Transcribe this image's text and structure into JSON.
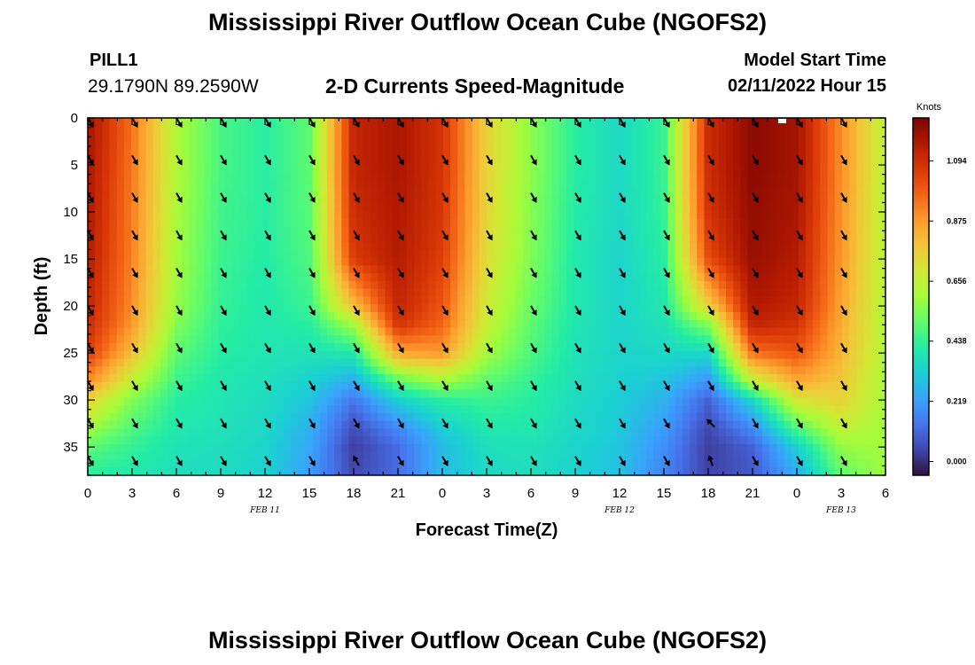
{
  "header": {
    "title": "Mississippi River Outflow Ocean Cube (NGOFS2)",
    "station_name": "PILL1",
    "station_coords": "29.1790N  89.2590W",
    "subtitle": "2-D Currents Speed-Magnitude",
    "model_start_label": "Model Start Time",
    "model_start_value": "02/11/2022 Hour 15"
  },
  "footer": {
    "title": "Mississippi River Outflow Ocean Cube (NGOFS2)"
  },
  "chart_data": {
    "type": "heatmap",
    "xlabel": "Forecast Time(Z)",
    "ylabel": "Depth (ft)",
    "x_tick_labels": [
      "0",
      "3",
      "6",
      "9",
      "12",
      "15",
      "18",
      "21",
      "0",
      "3",
      "6",
      "9",
      "12",
      "15",
      "18",
      "21",
      "0",
      "3",
      "6"
    ],
    "x_tick_hours": [
      0,
      3,
      6,
      9,
      12,
      15,
      18,
      21,
      24,
      27,
      30,
      33,
      36,
      39,
      42,
      45,
      48,
      51,
      54
    ],
    "x_range_hours": [
      0,
      54
    ],
    "date_labels": [
      {
        "hour": 12,
        "label": "FEB 11"
      },
      {
        "hour": 36,
        "label": "FEB 12"
      },
      {
        "hour": 51,
        "label": "FEB 13"
      }
    ],
    "y_tick_labels": [
      "0",
      "5",
      "10",
      "15",
      "20",
      "25",
      "30",
      "35"
    ],
    "y_tick_values": [
      0,
      5,
      10,
      15,
      20,
      25,
      30,
      35
    ],
    "y_range_ft": [
      0,
      38
    ],
    "y_inverted": true,
    "colorbar": {
      "unit": "Knots",
      "range": [
        -0.05,
        1.25
      ],
      "tick_labels": [
        "0.000",
        "0.219",
        "0.438",
        "0.656",
        "0.875",
        "1.094"
      ],
      "tick_values": [
        0.0,
        0.219,
        0.438,
        0.656,
        0.875,
        1.094
      ],
      "colormap": [
        "#30123b",
        "#4145ab",
        "#4675ed",
        "#39a2fc",
        "#1bcfd4",
        "#24eca6",
        "#61fc6c",
        "#a4fc3b",
        "#d1e834",
        "#f3c63a",
        "#fe9b2d",
        "#f36315",
        "#d93806",
        "#b11901",
        "#7a0402"
      ]
    },
    "speed_knots_by_hour": [
      {
        "hour": 0,
        "depth_ft": [
          0,
          5,
          10,
          15,
          20,
          22,
          25,
          28,
          30,
          33,
          35,
          38
        ],
        "speed": [
          1.18,
          1.17,
          1.16,
          1.15,
          1.12,
          1.1,
          1.05,
          0.9,
          0.75,
          0.6,
          0.5,
          0.42
        ]
      },
      {
        "hour": 3,
        "depth_ft": [
          0,
          5,
          10,
          15,
          20,
          22,
          25,
          28,
          30,
          33,
          35,
          38
        ],
        "speed": [
          0.95,
          0.94,
          0.93,
          0.92,
          0.9,
          0.88,
          0.8,
          0.66,
          0.55,
          0.48,
          0.44,
          0.4
        ]
      },
      {
        "hour": 6,
        "depth_ft": [
          0,
          5,
          10,
          15,
          20,
          22,
          25,
          28,
          30,
          33,
          35,
          38
        ],
        "speed": [
          0.62,
          0.62,
          0.61,
          0.6,
          0.58,
          0.55,
          0.5,
          0.45,
          0.42,
          0.4,
          0.38,
          0.37
        ]
      },
      {
        "hour": 9,
        "depth_ft": [
          0,
          5,
          10,
          15,
          20,
          22,
          25,
          28,
          30,
          33,
          35,
          38
        ],
        "speed": [
          0.47,
          0.47,
          0.46,
          0.45,
          0.44,
          0.43,
          0.42,
          0.4,
          0.39,
          0.38,
          0.37,
          0.36
        ]
      },
      {
        "hour": 12,
        "depth_ft": [
          0,
          5,
          10,
          15,
          20,
          22,
          25,
          28,
          30,
          33,
          35,
          38
        ],
        "speed": [
          0.42,
          0.42,
          0.42,
          0.41,
          0.4,
          0.4,
          0.39,
          0.37,
          0.36,
          0.35,
          0.34,
          0.33
        ]
      },
      {
        "hour": 15,
        "depth_ft": [
          0,
          5,
          10,
          15,
          20,
          22,
          25,
          28,
          30,
          33,
          35,
          38
        ],
        "speed": [
          0.5,
          0.5,
          0.49,
          0.48,
          0.45,
          0.42,
          0.38,
          0.33,
          0.3,
          0.26,
          0.24,
          0.22
        ]
      },
      {
        "hour": 18,
        "depth_ft": [
          0,
          5,
          10,
          15,
          20,
          22,
          25,
          28,
          30,
          33,
          35,
          38
        ],
        "speed": [
          1.12,
          1.12,
          1.1,
          1.06,
          0.8,
          0.6,
          0.4,
          0.25,
          0.14,
          0.06,
          0.03,
          0.05
        ]
      },
      {
        "hour": 21,
        "depth_ft": [
          0,
          5,
          10,
          15,
          20,
          22,
          25,
          28,
          30,
          33,
          35,
          38
        ],
        "speed": [
          1.17,
          1.17,
          1.16,
          1.15,
          1.12,
          1.08,
          0.85,
          0.5,
          0.33,
          0.18,
          0.12,
          0.12
        ]
      },
      {
        "hour": 24,
        "depth_ft": [
          0,
          5,
          10,
          15,
          20,
          22,
          25,
          28,
          30,
          33,
          35,
          38
        ],
        "speed": [
          1.08,
          1.08,
          1.07,
          1.05,
          1.0,
          0.97,
          0.88,
          0.6,
          0.42,
          0.32,
          0.28,
          0.28
        ]
      },
      {
        "hour": 27,
        "depth_ft": [
          0,
          5,
          10,
          15,
          20,
          22,
          25,
          28,
          30,
          33,
          35,
          38
        ],
        "speed": [
          0.75,
          0.75,
          0.74,
          0.72,
          0.68,
          0.66,
          0.6,
          0.5,
          0.45,
          0.4,
          0.37,
          0.35
        ]
      },
      {
        "hour": 30,
        "depth_ft": [
          0,
          5,
          10,
          15,
          20,
          22,
          25,
          28,
          30,
          33,
          35,
          38
        ],
        "speed": [
          0.57,
          0.57,
          0.56,
          0.55,
          0.52,
          0.5,
          0.48,
          0.44,
          0.42,
          0.4,
          0.38,
          0.37
        ]
      },
      {
        "hour": 33,
        "depth_ft": [
          0,
          5,
          10,
          15,
          20,
          22,
          25,
          28,
          30,
          33,
          35,
          38
        ],
        "speed": [
          0.42,
          0.42,
          0.41,
          0.4,
          0.4,
          0.39,
          0.38,
          0.37,
          0.36,
          0.35,
          0.34,
          0.33
        ]
      },
      {
        "hour": 36,
        "depth_ft": [
          0,
          5,
          10,
          15,
          20,
          22,
          25,
          28,
          30,
          33,
          35,
          38
        ],
        "speed": [
          0.35,
          0.35,
          0.35,
          0.34,
          0.34,
          0.34,
          0.34,
          0.33,
          0.32,
          0.31,
          0.3,
          0.29
        ]
      },
      {
        "hour": 39,
        "depth_ft": [
          0,
          5,
          10,
          15,
          20,
          22,
          25,
          28,
          30,
          33,
          35,
          38
        ],
        "speed": [
          0.45,
          0.45,
          0.44,
          0.42,
          0.4,
          0.38,
          0.35,
          0.3,
          0.26,
          0.22,
          0.19,
          0.17
        ]
      },
      {
        "hour": 42,
        "depth_ft": [
          0,
          5,
          10,
          15,
          20,
          22,
          25,
          28,
          30,
          33,
          35,
          38
        ],
        "speed": [
          1.1,
          1.1,
          1.08,
          1.02,
          0.75,
          0.55,
          0.35,
          0.2,
          0.1,
          0.05,
          0.03,
          0.04
        ]
      },
      {
        "hour": 45,
        "depth_ft": [
          0,
          5,
          10,
          15,
          20,
          22,
          25,
          28,
          30,
          33,
          35,
          38
        ],
        "speed": [
          1.22,
          1.22,
          1.21,
          1.2,
          1.16,
          1.12,
          0.95,
          0.65,
          0.35,
          0.18,
          0.1,
          0.08
        ]
      },
      {
        "hour": 48,
        "depth_ft": [
          0,
          5,
          10,
          15,
          20,
          22,
          25,
          28,
          30,
          33,
          35,
          38
        ],
        "speed": [
          1.18,
          1.18,
          1.17,
          1.15,
          1.12,
          1.08,
          1.0,
          0.85,
          0.7,
          0.48,
          0.33,
          0.25
        ]
      },
      {
        "hour": 51,
        "depth_ft": [
          0,
          5,
          10,
          15,
          20,
          22,
          25,
          28,
          30,
          33,
          35,
          38
        ],
        "speed": [
          0.9,
          0.9,
          0.89,
          0.88,
          0.86,
          0.84,
          0.82,
          0.78,
          0.75,
          0.66,
          0.58,
          0.5
        ]
      },
      {
        "hour": 54,
        "depth_ft": [
          0,
          5,
          10,
          15,
          20,
          22,
          25,
          28,
          30,
          33,
          35,
          38
        ],
        "speed": [
          0.64,
          0.64,
          0.63,
          0.63,
          0.62,
          0.62,
          0.62,
          0.61,
          0.61,
          0.6,
          0.6,
          0.6
        ]
      }
    ],
    "vector_field": {
      "hours": [
        0,
        3,
        6,
        9,
        12,
        15,
        18,
        21,
        24,
        27,
        30,
        33,
        36,
        39,
        42,
        45,
        48,
        51
      ],
      "depths_ft": [
        0,
        4,
        8,
        12,
        16,
        20,
        24,
        28,
        32,
        36
      ],
      "default_direction_deg": 150,
      "exceptions": [
        {
          "hour": 18,
          "depth_ft": 36,
          "direction_deg": 330
        },
        {
          "hour": 42,
          "depth_ft": 32,
          "direction_deg": 315
        },
        {
          "hour": 42,
          "depth_ft": 36,
          "direction_deg": 340
        }
      ]
    }
  }
}
